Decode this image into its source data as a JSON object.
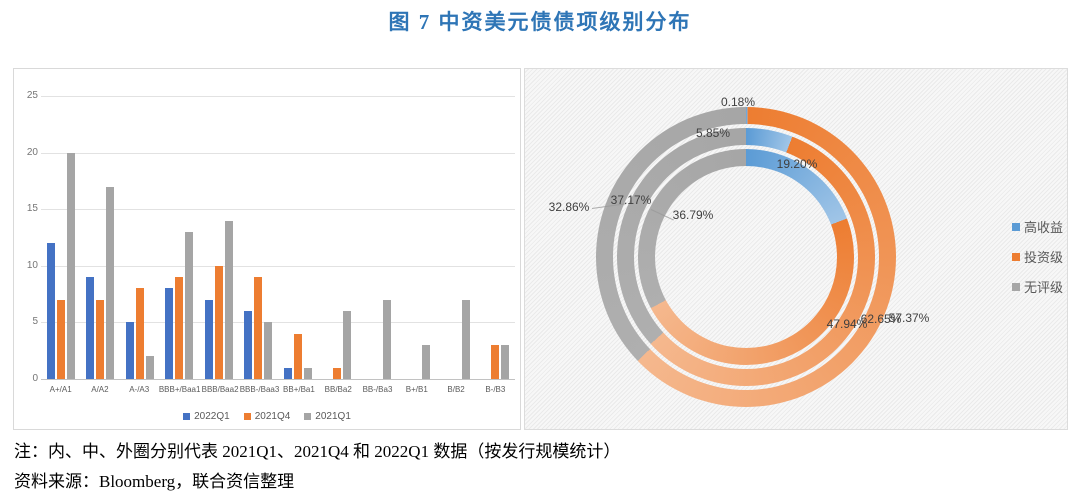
{
  "title": {
    "text": "图 7 中资美元债债项级别分布",
    "color": "#2E75B6"
  },
  "notes": {
    "note": "注：内、中、外圈分别代表 2021Q1、2021Q4 和 2022Q1 数据（按发行规模统计）",
    "source": "资料来源：Bloomberg，联合资信整理"
  },
  "chart_data": [
    {
      "type": "bar",
      "title": "",
      "categories": [
        "A+/A1",
        "A/A2",
        "A-/A3",
        "BBB+/Baa1",
        "BBB/Baa2",
        "BBB-/Baa3",
        "BB+/Ba1",
        "BB/Ba2",
        "BB-/Ba3",
        "B+/B1",
        "B/B2",
        "B-/B3"
      ],
      "series": [
        {
          "name": "2022Q1",
          "color": "#4472C4",
          "values": [
            12,
            9,
            5,
            8,
            7,
            6,
            1,
            0,
            0,
            0,
            0,
            0
          ]
        },
        {
          "name": "2021Q4",
          "color": "#ED7D31",
          "values": [
            7,
            7,
            8,
            9,
            10,
            9,
            4,
            1,
            0,
            0,
            0,
            3
          ]
        },
        {
          "name": "2021Q1",
          "color": "#A5A5A5",
          "values": [
            20,
            17,
            2,
            13,
            14,
            5,
            1,
            6,
            7,
            3,
            7,
            3
          ]
        }
      ],
      "ylim": [
        0,
        25
      ],
      "yticks": [
        0,
        5,
        10,
        15,
        20,
        25
      ],
      "grid": true,
      "legend_position": "bottom"
    },
    {
      "type": "donut",
      "categories": [
        "高收益",
        "投资级",
        "无评级"
      ],
      "colors": {
        "高收益": "#5B9BD5",
        "投资级": "#ED7D31",
        "无评级": "#A6A6A6"
      },
      "rings": [
        {
          "name": "2021Q1",
          "position": "inner",
          "values": [
            19.2,
            47.94,
            32.86
          ]
        },
        {
          "name": "2021Q4",
          "position": "middle",
          "values": [
            5.85,
            57.37,
            36.79
          ]
        },
        {
          "name": "2022Q1",
          "position": "outer",
          "values": [
            0.18,
            62.65,
            37.17
          ]
        }
      ],
      "labels": [
        "0.18%",
        "5.85%",
        "19.20%",
        "32.86%",
        "37.17%",
        "36.79%",
        "47.94%",
        "62.65%",
        "57.37%"
      ],
      "legend": [
        "高收益",
        "投资级",
        "无评级"
      ],
      "legend_position": "right"
    }
  ]
}
